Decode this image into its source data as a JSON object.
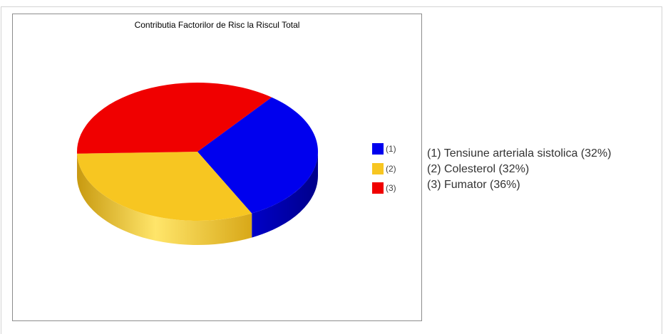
{
  "chart_data": {
    "type": "pie",
    "title": "Contributia Factorilor de Risc la Riscul Total",
    "slices": [
      {
        "legend_label": "(1)",
        "description": "(1) Tensiune arteriala sistolica (32%)",
        "value": 32,
        "color": "#0000ee",
        "side_color": "#0000b0"
      },
      {
        "legend_label": "(2)",
        "description": "(2) Colesterol (32%)",
        "value": 32,
        "color": "#f7c621",
        "side_color": "#e0a800"
      },
      {
        "legend_label": "(3)",
        "description": "(3) Fumator (36%)",
        "value": 36,
        "color": "#f00000",
        "side_color": "#c00000"
      }
    ],
    "three_d": true,
    "legend_position": "right"
  }
}
